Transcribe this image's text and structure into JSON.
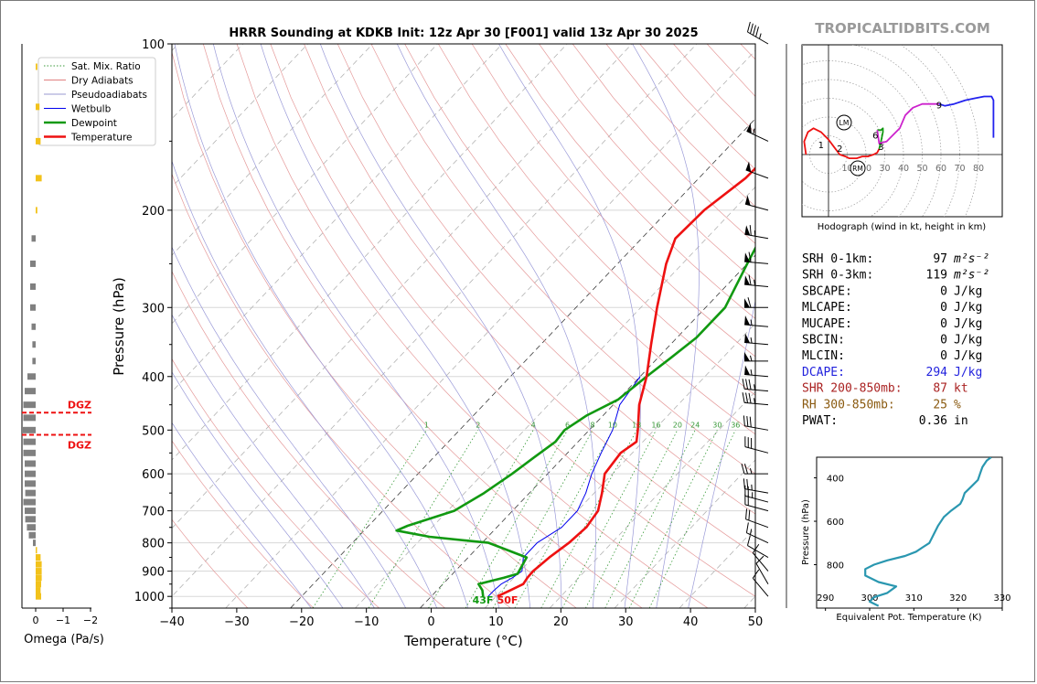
{
  "brand": "TROPICALTIDBITS.COM",
  "chart_data": [
    {
      "type": "line",
      "name": "skew-t",
      "title": "HRRR Sounding at KDKB Init: 12z Apr 30 [F001] valid 13z Apr 30 2025",
      "xlabel": "Temperature (°C)",
      "ylabel": "Pressure (hPa)",
      "xlim": [
        -40,
        50
      ],
      "ylim": [
        1050,
        100
      ],
      "y_scale": "log",
      "x_ticks": [
        -40,
        -30,
        -20,
        -10,
        0,
        10,
        20,
        30,
        40,
        50
      ],
      "x_tick_labels": [
        "−40",
        "−30",
        "−20",
        "−10",
        "0",
        "10",
        "20",
        "30",
        "40",
        "50"
      ],
      "y_ticks": [
        100,
        200,
        300,
        400,
        500,
        600,
        700,
        800,
        900,
        1000
      ],
      "legend": {
        "position": "top-left",
        "entries": [
          {
            "label": "Sat. Mix. Ratio",
            "color": "#3a9a3a",
            "style": "dotted"
          },
          {
            "label": "Dry Adiabats",
            "color": "#e08080",
            "style": "solid"
          },
          {
            "label": "Pseudoadiabats",
            "color": "#9a9ad0",
            "style": "solid"
          },
          {
            "label": "Wetbulb",
            "color": "#0000ee",
            "style": "solid"
          },
          {
            "label": "Dewpoint",
            "color": "#119911",
            "style": "solid"
          },
          {
            "label": "Temperature",
            "color": "#ee1111",
            "style": "solid"
          }
        ]
      },
      "mixing_ratio_labels": [
        "1",
        "2",
        "4",
        "6",
        "8",
        "10",
        "13",
        "16",
        "20",
        "24",
        "30",
        "36"
      ],
      "mixing_ratio_values": [
        1,
        2,
        4,
        6,
        8,
        10,
        13,
        16,
        20,
        24,
        30,
        36
      ],
      "surface_labels": {
        "dewpoint": "43F",
        "temperature": "50F"
      },
      "series": [
        {
          "name": "Temperature",
          "color": "#ee1111",
          "points": [
            [
              1000,
              10.2
            ],
            [
              975,
              11.3
            ],
            [
              950,
              12.4
            ],
            [
              925,
              12.1
            ],
            [
              900,
              12.0
            ],
            [
              850,
              12.5
            ],
            [
              800,
              13.4
            ],
            [
              750,
              13.8
            ],
            [
              700,
              13.2
            ],
            [
              650,
              11.2
            ],
            [
              600,
              8.8
            ],
            [
              550,
              8.2
            ],
            [
              525,
              9.0
            ],
            [
              500,
              7.5
            ],
            [
              450,
              4.0
            ],
            [
              400,
              1.0
            ],
            [
              350,
              -3.0
            ],
            [
              300,
              -7.5
            ],
            [
              250,
              -12.5
            ],
            [
              225,
              -14.8
            ],
            [
              200,
              -14.5
            ],
            [
              175,
              -12.8
            ],
            [
              150,
              -12.5
            ],
            [
              125,
              -8.0
            ],
            [
              100,
              3.0
            ]
          ]
        },
        {
          "name": "Dewpoint",
          "color": "#119911",
          "points": [
            [
              1000,
              8.0
            ],
            [
              975,
              7.0
            ],
            [
              950,
              5.5
            ],
            [
              925,
              8.5
            ],
            [
              910,
              10.0
            ],
            [
              880,
              9.5
            ],
            [
              850,
              9.0
            ],
            [
              800,
              1.0
            ],
            [
              780,
              -9.0
            ],
            [
              760,
              -15.0
            ],
            [
              745,
              -14.0
            ],
            [
              700,
              -9.0
            ],
            [
              650,
              -7.0
            ],
            [
              600,
              -5.5
            ],
            [
              560,
              -4.5
            ],
            [
              525,
              -3.5
            ],
            [
              500,
              -3.8
            ],
            [
              470,
              -2.5
            ],
            [
              440,
              0.0
            ],
            [
              400,
              1.0
            ],
            [
              370,
              2.0
            ],
            [
              340,
              3.0
            ],
            [
              300,
              3.0
            ],
            [
              250,
              0.0
            ],
            [
              200,
              -3.5
            ],
            [
              175,
              -3.0
            ],
            [
              150,
              0.5
            ],
            [
              125,
              0.0
            ],
            [
              100,
              -3.0
            ]
          ]
        },
        {
          "name": "Wetbulb",
          "color": "#0000ee",
          "points": [
            [
              1000,
              8.8
            ],
            [
              975,
              8.8
            ],
            [
              950,
              9.0
            ],
            [
              925,
              9.8
            ],
            [
              900,
              10.3
            ],
            [
              850,
              8.5
            ],
            [
              800,
              8.5
            ],
            [
              750,
              10.0
            ],
            [
              700,
              10.0
            ],
            [
              650,
              8.7
            ],
            [
              600,
              6.8
            ],
            [
              550,
              5.2
            ],
            [
              500,
              3.6
            ],
            [
              450,
              1.0
            ],
            [
              400,
              0.0
            ]
          ]
        }
      ]
    },
    {
      "type": "line",
      "name": "hodograph",
      "xlabel": "Hodograph (wind in kt, height in km)",
      "ring_labels": [
        "10",
        "20",
        "30",
        "40",
        "50",
        "60",
        "70",
        "80"
      ],
      "ring_values": [
        10,
        20,
        30,
        40,
        50,
        60,
        70,
        80
      ],
      "height_labels": [
        "1",
        "2",
        "3",
        "6",
        "9"
      ],
      "markers": [
        "LM",
        "RM"
      ],
      "segments": [
        {
          "color": "#ee1111",
          "points": [
            [
              -12,
              0
            ],
            [
              -13,
              7
            ],
            [
              -11,
              12
            ],
            [
              -8,
              14
            ],
            [
              -4,
              12
            ],
            [
              0,
              8
            ],
            [
              3,
              4
            ],
            [
              6,
              0
            ],
            [
              9,
              -1
            ],
            [
              11,
              -2
            ],
            [
              15,
              -2
            ],
            [
              18,
              -1
            ],
            [
              21,
              -1
            ],
            [
              24,
              0
            ],
            [
              26,
              1
            ],
            [
              27,
              3
            ]
          ]
        },
        {
          "color": "#119911",
          "points": [
            [
              27,
              3
            ],
            [
              28,
              7
            ],
            [
              29,
              12
            ],
            [
              29,
              14
            ],
            [
              28,
              13
            ],
            [
              26,
              13
            ]
          ]
        },
        {
          "color": "#cc22cc",
          "points": [
            [
              26,
              13
            ],
            [
              27,
              6
            ],
            [
              31,
              7
            ],
            [
              34,
              10
            ],
            [
              38,
              14
            ],
            [
              41,
              21
            ],
            [
              45,
              25
            ],
            [
              50,
              27
            ],
            [
              55,
              27
            ],
            [
              59,
              27
            ]
          ]
        },
        {
          "color": "#2222ee",
          "points": [
            [
              59,
              27
            ],
            [
              62,
              26
            ],
            [
              67,
              27
            ],
            [
              73,
              29
            ],
            [
              78,
              30
            ],
            [
              83,
              31
            ],
            [
              87,
              31
            ],
            [
              88,
              29
            ],
            [
              88,
              18
            ],
            [
              88,
              9
            ]
          ]
        }
      ],
      "height_points": [
        [
          1,
          -4,
          5
        ],
        [
          2,
          6,
          3
        ],
        [
          3,
          28,
          4
        ],
        [
          6,
          25,
          10
        ],
        [
          9,
          59,
          26
        ]
      ]
    },
    {
      "type": "line",
      "name": "theta-e",
      "xlabel": "Equivalent Pot. Temperature (K)",
      "ylabel": "Pressure (hPa)",
      "xlim": [
        288,
        330
      ],
      "ylim": [
        1000,
        305
      ],
      "x_ticks": [
        290,
        300,
        310,
        320,
        330
      ],
      "y_ticks": [
        400,
        600,
        800
      ],
      "y_tick_extra": "1000",
      "series": [
        {
          "name": "Theta-E",
          "color": "#2a97b0",
          "points": [
            [
              990,
              302
            ],
            [
              970,
              300
            ],
            [
              950,
              301
            ],
            [
              930,
              304
            ],
            [
              900,
              306
            ],
            [
              880,
              302
            ],
            [
              850,
              299
            ],
            [
              820,
              299
            ],
            [
              800,
              301
            ],
            [
              780,
              304
            ],
            [
              760,
              308
            ],
            [
              740,
              310.5
            ],
            [
              720,
              312
            ],
            [
              700,
              313.5
            ],
            [
              660,
              314.5
            ],
            [
              620,
              315.5
            ],
            [
              580,
              316.8
            ],
            [
              550,
              318.5
            ],
            [
              520,
              320.5
            ],
            [
              500,
              321
            ],
            [
              470,
              321.5
            ],
            [
              440,
              323
            ],
            [
              410,
              324.5
            ],
            [
              380,
              325
            ],
            [
              350,
              325.5
            ],
            [
              320,
              326.5
            ],
            [
              305,
              327.5
            ]
          ]
        }
      ]
    },
    {
      "type": "bar",
      "name": "omega",
      "xlabel": "Omega (Pa/s)",
      "x_tick_labels": [
        "0",
        "−1",
        "−2"
      ],
      "x_ticks": [
        0,
        -1,
        -2
      ],
      "dgz_label": "DGZ",
      "dgz_levels": [
        465,
        510
      ],
      "bars": [
        {
          "p": 110,
          "v": 0.06
        },
        {
          "p": 130,
          "v": 0.14
        },
        {
          "p": 150,
          "v": 0.18
        },
        {
          "p": 175,
          "v": 0.22
        },
        {
          "p": 200,
          "v": 0.06
        },
        {
          "p": 225,
          "v": -0.15
        },
        {
          "p": 250,
          "v": -0.2
        },
        {
          "p": 275,
          "v": -0.2
        },
        {
          "p": 300,
          "v": -0.2
        },
        {
          "p": 325,
          "v": -0.15
        },
        {
          "p": 350,
          "v": -0.12
        },
        {
          "p": 375,
          "v": -0.12
        },
        {
          "p": 400,
          "v": -0.3
        },
        {
          "p": 425,
          "v": -0.4
        },
        {
          "p": 450,
          "v": -0.45
        },
        {
          "p": 475,
          "v": -0.45
        },
        {
          "p": 500,
          "v": -0.5
        },
        {
          "p": 525,
          "v": -0.45
        },
        {
          "p": 550,
          "v": -0.45
        },
        {
          "p": 575,
          "v": -0.4
        },
        {
          "p": 600,
          "v": -0.4
        },
        {
          "p": 625,
          "v": -0.4
        },
        {
          "p": 650,
          "v": -0.38
        },
        {
          "p": 675,
          "v": -0.45
        },
        {
          "p": 700,
          "v": -0.4
        },
        {
          "p": 725,
          "v": -0.38
        },
        {
          "p": 750,
          "v": -0.32
        },
        {
          "p": 775,
          "v": -0.25
        },
        {
          "p": 800,
          "v": -0.1
        },
        {
          "p": 825,
          "v": 0.05
        },
        {
          "p": 850,
          "v": 0.18
        },
        {
          "p": 875,
          "v": 0.22
        },
        {
          "p": 900,
          "v": 0.22
        },
        {
          "p": 925,
          "v": 0.22
        },
        {
          "p": 950,
          "v": 0.2
        },
        {
          "p": 975,
          "v": 0.18
        },
        {
          "p": 1000,
          "v": 0.2
        }
      ]
    }
  ],
  "wind_barbs": [
    {
      "p": 100,
      "dir": 300,
      "spd": 45
    },
    {
      "p": 150,
      "dir": 295,
      "spd": 55
    },
    {
      "p": 175,
      "dir": 290,
      "spd": 50
    },
    {
      "p": 200,
      "dir": 285,
      "spd": 50
    },
    {
      "p": 225,
      "dir": 280,
      "spd": 65
    },
    {
      "p": 250,
      "dir": 275,
      "spd": 60
    },
    {
      "p": 275,
      "dir": 275,
      "spd": 65
    },
    {
      "p": 300,
      "dir": 270,
      "spd": 60
    },
    {
      "p": 325,
      "dir": 275,
      "spd": 55
    },
    {
      "p": 350,
      "dir": 275,
      "spd": 55
    },
    {
      "p": 375,
      "dir": 270,
      "spd": 55
    },
    {
      "p": 400,
      "dir": 275,
      "spd": 55
    },
    {
      "p": 425,
      "dir": 275,
      "spd": 35
    },
    {
      "p": 450,
      "dir": 275,
      "spd": 35
    },
    {
      "p": 500,
      "dir": 280,
      "spd": 30
    },
    {
      "p": 550,
      "dir": 285,
      "spd": 30
    },
    {
      "p": 600,
      "dir": 270,
      "spd": 25
    },
    {
      "p": 650,
      "dir": 280,
      "spd": 25
    },
    {
      "p": 675,
      "dir": 285,
      "spd": 25
    },
    {
      "p": 700,
      "dir": 285,
      "spd": 20
    },
    {
      "p": 750,
      "dir": 290,
      "spd": 20
    },
    {
      "p": 800,
      "dir": 295,
      "spd": 15
    },
    {
      "p": 850,
      "dir": 300,
      "spd": 10
    },
    {
      "p": 900,
      "dir": 320,
      "spd": 10
    },
    {
      "p": 950,
      "dir": 330,
      "spd": 10
    },
    {
      "p": 1000,
      "dir": 320,
      "spd": 10
    }
  ],
  "stats": [
    {
      "label": "SRH 0-1km:",
      "value": "97",
      "unit": "m²s⁻²",
      "color": "#000000"
    },
    {
      "label": "SRH 0-3km:",
      "value": "119",
      "unit": "m²s⁻²",
      "color": "#000000"
    },
    {
      "label": "SBCAPE:",
      "value": "0",
      "unit": "J/kg",
      "color": "#000000"
    },
    {
      "label": "MLCAPE:",
      "value": "0",
      "unit": "J/kg",
      "color": "#000000"
    },
    {
      "label": "MUCAPE:",
      "value": "0",
      "unit": "J/kg",
      "color": "#000000"
    },
    {
      "label": "SBCIN:",
      "value": "0",
      "unit": "J/kg",
      "color": "#000000"
    },
    {
      "label": "MLCIN:",
      "value": "0",
      "unit": "J/kg",
      "color": "#000000"
    },
    {
      "label": "DCAPE:",
      "value": "294",
      "unit": "J/kg",
      "color": "#2222dd"
    },
    {
      "label": "SHR 200-850mb:",
      "value": "87",
      "unit": "kt",
      "color": "#aa2222"
    },
    {
      "label": "RH 300-850mb:",
      "value": "25",
      "unit": "%",
      "color": "#8a5a10"
    },
    {
      "label": "PWAT:",
      "value": "0.36",
      "unit": "in",
      "color": "#000000"
    }
  ]
}
